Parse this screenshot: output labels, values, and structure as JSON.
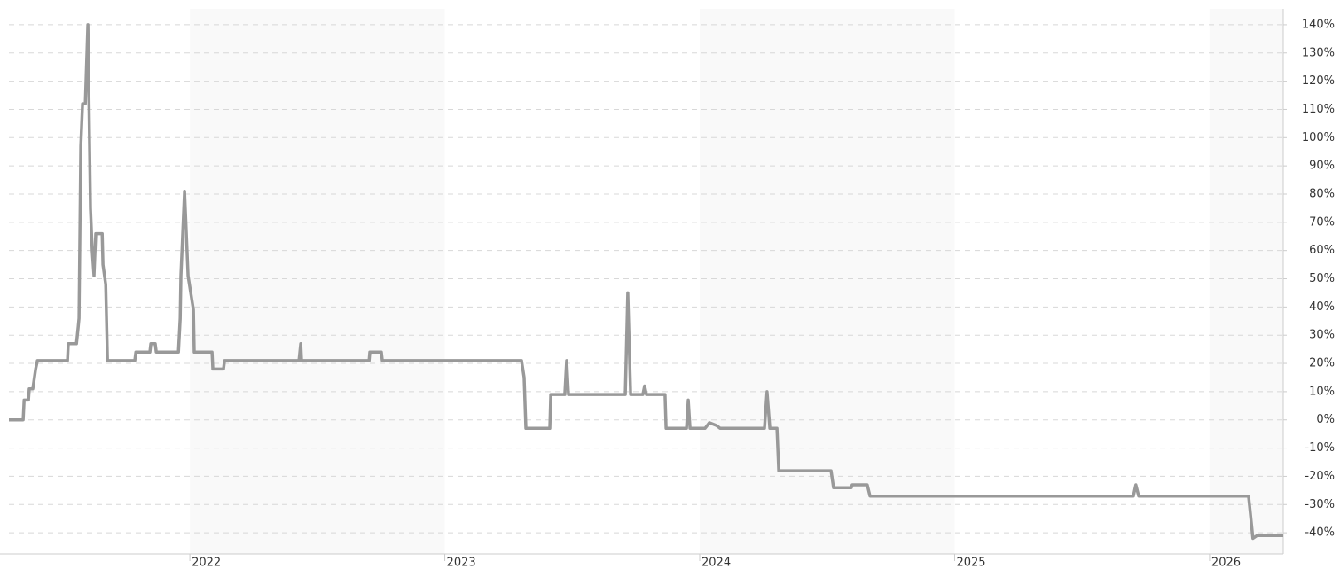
{
  "chart_data": {
    "type": "line",
    "x": [
      2021.29,
      2021.346,
      2021.35,
      2021.367,
      2021.37,
      2021.384,
      2021.395,
      2021.402,
      2021.52,
      2021.523,
      2021.555,
      2021.562,
      2021.565,
      2021.572,
      2021.579,
      2021.59,
      2021.6,
      2021.603,
      2021.61,
      2021.617,
      2021.624,
      2021.631,
      2021.656,
      2021.659,
      2021.67,
      2021.677,
      2021.784,
      2021.788,
      2021.843,
      2021.847,
      2021.864,
      2021.868,
      2021.955,
      2021.962,
      2021.965,
      2021.979,
      2021.993,
      2022.014,
      2022.017,
      2022.087,
      2022.09,
      2022.132,
      2022.136,
      2022.428,
      2022.435,
      2022.438,
      2022.703,
      2022.706,
      2022.751,
      2022.755,
      2023.301,
      2023.311,
      2023.318,
      2023.412,
      2023.416,
      2023.471,
      2023.478,
      2023.485,
      2023.708,
      2023.718,
      2023.729,
      2023.777,
      2023.784,
      2023.791,
      2023.864,
      2023.868,
      2023.948,
      2023.955,
      2023.962,
      2024.021,
      2024.038,
      2024.066,
      2024.08,
      2024.254,
      2024.264,
      2024.275,
      2024.303,
      2024.31,
      2024.515,
      2024.525,
      2024.595,
      2024.598,
      2024.657,
      2024.668,
      2025.701,
      2025.711,
      2025.722,
      2026.153,
      2026.16,
      2026.17,
      2026.186,
      2026.289
    ],
    "series": [
      {
        "color": "#999999",
        "values": [
          0,
          0,
          7,
          7,
          11,
          11,
          18,
          21,
          21,
          27,
          27,
          33,
          36,
          97,
          112,
          112,
          140,
          120,
          75,
          60,
          51,
          66,
          66,
          55,
          48,
          21,
          21,
          24,
          24,
          27,
          27,
          24,
          24,
          36,
          51,
          81,
          51,
          39,
          24,
          24,
          18,
          18,
          21,
          21,
          27,
          21,
          21,
          24,
          24,
          21,
          21,
          15,
          -3,
          -3,
          9,
          9,
          21,
          9,
          9,
          45,
          9,
          9,
          12,
          9,
          9,
          -3,
          -3,
          7,
          -3,
          -3,
          -1,
          -2,
          -3,
          -3,
          10,
          -3,
          -3,
          -18,
          -18,
          -24,
          -24,
          -23,
          -23,
          -27,
          -27,
          -23,
          -27,
          -27,
          -33,
          -42,
          -41,
          -41
        ]
      }
    ],
    "xlim": [
      2021.29,
      2026.289
    ],
    "xticks": [
      2022,
      2023,
      2024,
      2025,
      2026
    ],
    "ylim": [
      -47.5,
      145
    ],
    "yticks": [
      {
        "value": 140,
        "label": "140%"
      },
      {
        "value": 130,
        "label": "130%"
      },
      {
        "value": 120,
        "label": "120%"
      },
      {
        "value": 110,
        "label": "110%"
      },
      {
        "value": 100,
        "label": "100%"
      },
      {
        "value": 90,
        "label": "90%"
      },
      {
        "value": 80,
        "label": "80%"
      },
      {
        "value": 70,
        "label": "70%"
      },
      {
        "value": 60,
        "label": "60%"
      },
      {
        "value": 50,
        "label": "50%"
      },
      {
        "value": 40,
        "label": "40%"
      },
      {
        "value": 30,
        "label": "30%"
      },
      {
        "value": 20,
        "label": "20%"
      },
      {
        "value": 10,
        "label": "10%"
      },
      {
        "value": 0,
        "label": "0%"
      },
      {
        "value": -10,
        "label": "-10%"
      },
      {
        "value": -20,
        "label": "-20%"
      },
      {
        "value": -30,
        "label": "-30%"
      },
      {
        "value": -40,
        "label": "-40%"
      }
    ],
    "grid": true
  }
}
